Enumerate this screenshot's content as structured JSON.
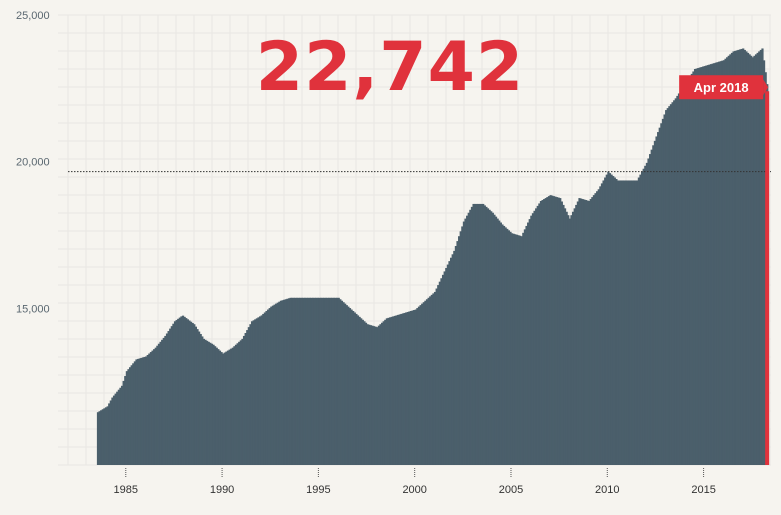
{
  "headline": {
    "value": "22,742"
  },
  "colors": {
    "bars": "#4b5f6b",
    "accent": "#e0323c",
    "grid": "#e8e6e3",
    "text": "#5a6770"
  },
  "chart_data": {
    "type": "bar",
    "title": "",
    "xlabel": "",
    "ylabel": "",
    "ylim": [
      10000,
      25000
    ],
    "xlim": [
      1982.0,
      2018.5
    ],
    "y_ticks": [
      {
        "value": 25000,
        "label": "25,000"
      },
      {
        "value": 20000,
        "label": "20,000"
      },
      {
        "value": 15000,
        "label": "15,000"
      }
    ],
    "x_ticks": [
      {
        "value": 1985,
        "label": "1985"
      },
      {
        "value": 1990,
        "label": "1990"
      },
      {
        "value": 1995,
        "label": "1995"
      },
      {
        "value": 2000,
        "label": "2000"
      },
      {
        "value": 2005,
        "label": "2005"
      },
      {
        "value": 2010,
        "label": "2010"
      },
      {
        "value": 2015,
        "label": "2015"
      }
    ],
    "reference_line": 20000,
    "highlight": {
      "label": "Apr 2018",
      "x": 2018.3,
      "value": 22742
    },
    "series": [
      {
        "x": [
          1983.5,
          1983.75,
          1984.0,
          1984.25,
          1984.5,
          1984.75,
          1985.0,
          1985.5,
          1986.0,
          1986.5,
          1987.0,
          1987.5,
          1987.9,
          1988.5,
          1989.0,
          1989.5,
          1990.0,
          1990.5,
          1991.0,
          1991.5,
          1992.0,
          1992.5,
          1993.0,
          1993.5,
          1994.0,
          1994.5,
          1995.0,
          1995.5,
          1996.0,
          1996.5,
          1997.0,
          1997.5,
          1998.0,
          1998.5,
          1999.0,
          1999.5,
          2000.0,
          2000.5,
          2001.0,
          2001.5,
          2002.0,
          2002.5,
          2003.0,
          2003.5,
          2004.0,
          2004.5,
          2005.0,
          2005.5,
          2006.0,
          2006.5,
          2007.0,
          2007.5,
          2008.0,
          2008.5,
          2009.0,
          2009.5,
          2010.0,
          2010.5,
          2011.0,
          2011.5,
          2012.0,
          2012.5,
          2013.0,
          2013.5,
          2014.0,
          2014.5,
          2015.0,
          2015.5,
          2016.0,
          2016.5,
          2017.0,
          2017.5,
          2018.0,
          2018.3
        ],
        "values": [
          11800,
          11900,
          12000,
          12300,
          12500,
          12700,
          13200,
          13600,
          13700,
          14000,
          14400,
          14900,
          15100,
          14800,
          14300,
          14100,
          13800,
          14000,
          14300,
          14900,
          15100,
          15400,
          15600,
          15700,
          15700,
          15700,
          15700,
          15700,
          15700,
          15400,
          15100,
          14800,
          14700,
          15000,
          15100,
          15200,
          15300,
          15600,
          15900,
          16600,
          17300,
          18300,
          18900,
          18900,
          18600,
          18200,
          17900,
          17800,
          18500,
          19000,
          19200,
          19100,
          18400,
          19100,
          19000,
          19400,
          20000,
          19700,
          19700,
          19700,
          20300,
          21200,
          22100,
          22500,
          23000,
          23500,
          23600,
          23700,
          23800,
          24100,
          24200,
          23900,
          24200,
          22742
        ]
      }
    ]
  }
}
